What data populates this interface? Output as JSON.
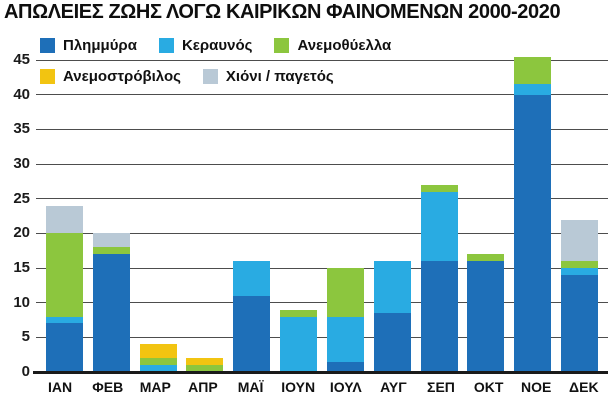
{
  "title": "ΑΠΩΛΕΙΕΣ ΖΩΗΣ ΛΟΓΩ ΚΑΙΡΙΚΩΝ ΦΑΙΝΟΜΕΝΩΝ 2000-2020",
  "colors": {
    "flood": "#1E6FB8",
    "lightning": "#29ABE2",
    "windstorm": "#8CC63E",
    "tornado": "#F2C411",
    "snow_frost": "#B9C9D6",
    "gridline": "#4d4d4d",
    "axis": "#1a1a1a",
    "background": "#ffffff",
    "text": "#111111"
  },
  "legend": {
    "rows": [
      [
        0,
        1,
        2
      ],
      [
        3,
        4
      ]
    ]
  },
  "chart_data": {
    "type": "bar",
    "stacked": true,
    "title": "ΑΠΩΛΕΙΕΣ ΖΩΗΣ ΛΟΓΩ ΚΑΙΡΙΚΩΝ ΦΑΙΝΟΜΕΝΩΝ 2000-2020",
    "categories": [
      "ΙΑΝ",
      "ΦΕΒ",
      "ΜΑΡ",
      "ΑΠΡ",
      "ΜΑΪ",
      "ΙΟΥΝ",
      "ΙΟΥΛ",
      "ΑΥΓ",
      "ΣΕΠ",
      "ΟΚΤ",
      "ΝΟΕ",
      "ΔΕΚ"
    ],
    "series": [
      {
        "name": "Πλημμύρα",
        "color": "#1E6FB8",
        "values": [
          7,
          17,
          0,
          0,
          11,
          0,
          1.5,
          8.5,
          16,
          16,
          40,
          14
        ]
      },
      {
        "name": "Κεραυνός",
        "color": "#29ABE2",
        "values": [
          1,
          0,
          1,
          0,
          5,
          8,
          6.5,
          7.5,
          10,
          0,
          1.5,
          1
        ]
      },
      {
        "name": "Ανεμοθύελλα",
        "color": "#8CC63E",
        "values": [
          12,
          1,
          1,
          1,
          0,
          1,
          7,
          0,
          1,
          1,
          4,
          1
        ]
      },
      {
        "name": "Ανεμοστρόβιλος",
        "color": "#F2C411",
        "values": [
          0,
          0,
          2,
          1,
          0,
          0,
          0,
          0,
          0,
          0,
          0,
          0
        ]
      },
      {
        "name": "Χιόνι / παγετός",
        "color": "#B9C9D6",
        "values": [
          4,
          2,
          0,
          0,
          0,
          0,
          0,
          0,
          0,
          0,
          0,
          6
        ]
      }
    ],
    "y_ticks": [
      0,
      5,
      10,
      15,
      20,
      25,
      30,
      35,
      40,
      45
    ],
    "ylim": [
      0,
      45
    ],
    "xlabel": "",
    "ylabel": "",
    "grid": true,
    "legend_position": "top-left"
  }
}
